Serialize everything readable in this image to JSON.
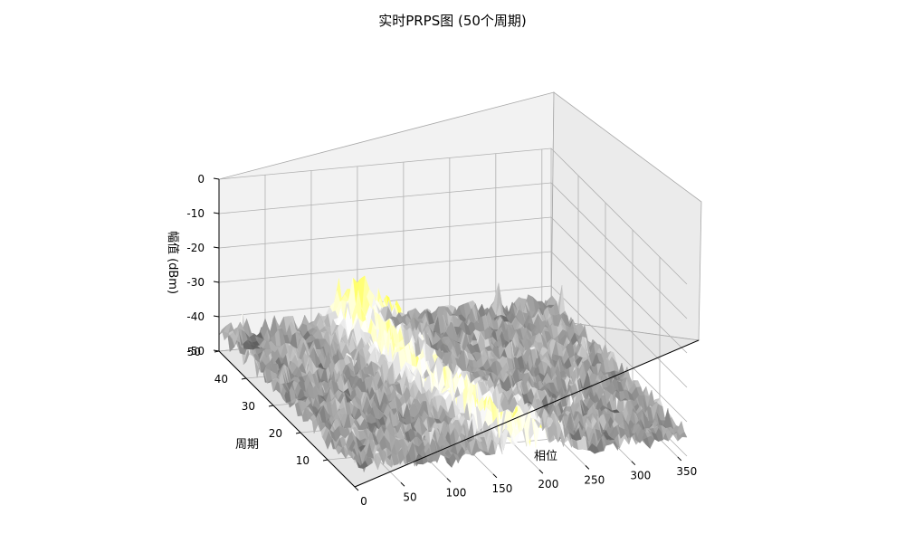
{
  "chart_data": {
    "type": "surface3d",
    "title": "实时PRPS图 (50个周期)",
    "xlabel": "相位",
    "ylabel": "周期",
    "zlabel": "幅值 (dBm)",
    "xlim": [
      0,
      360
    ],
    "ylim": [
      0,
      50
    ],
    "zlim": [
      -50,
      0
    ],
    "x_ticks": [
      "0",
      "50",
      "100",
      "150",
      "200",
      "250",
      "300",
      "350"
    ],
    "y_ticks": [
      "10",
      "20",
      "30",
      "40",
      "50"
    ],
    "z_ticks": [
      "0",
      "-10",
      "-20",
      "-30",
      "-40",
      "-50"
    ],
    "colormap": [
      "#000000",
      "#8c8c8c",
      "#ffffff",
      "#ffff80",
      "#ffff00",
      "#ffa500",
      "#ff3300"
    ],
    "grid": true,
    "notes_visible": "noisy amplitude surface mostly between -50 and -40 dBm with peaks near -30 dBm around phase 90-180"
  }
}
